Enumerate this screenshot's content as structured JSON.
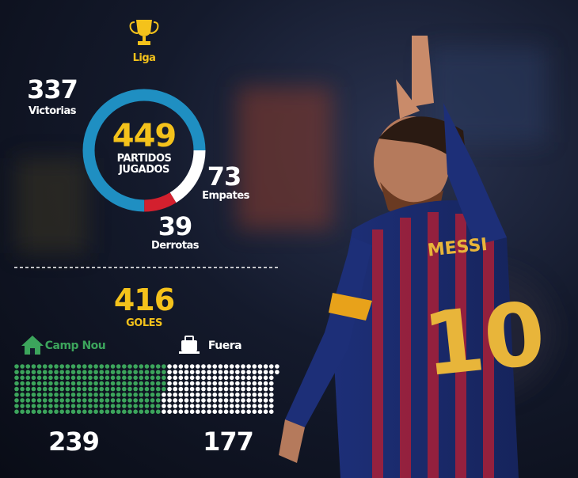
{
  "chart_data": [
    {
      "type": "donut",
      "title": "Liga",
      "total": 449,
      "total_label": "PARTIDOS JUGADOS",
      "categories": [
        "Victorias",
        "Empates",
        "Derrotas"
      ],
      "values": [
        337,
        73,
        39
      ],
      "colors": [
        "#1f8fc2",
        "#ffffff",
        "#d3202e"
      ]
    },
    {
      "type": "dots",
      "total": 416,
      "total_label": "GOLES",
      "categories": [
        "Camp Nou",
        "Fuera"
      ],
      "values": [
        239,
        177
      ],
      "colors": [
        "#3ca55c",
        "#ffffff"
      ]
    }
  ]
}
